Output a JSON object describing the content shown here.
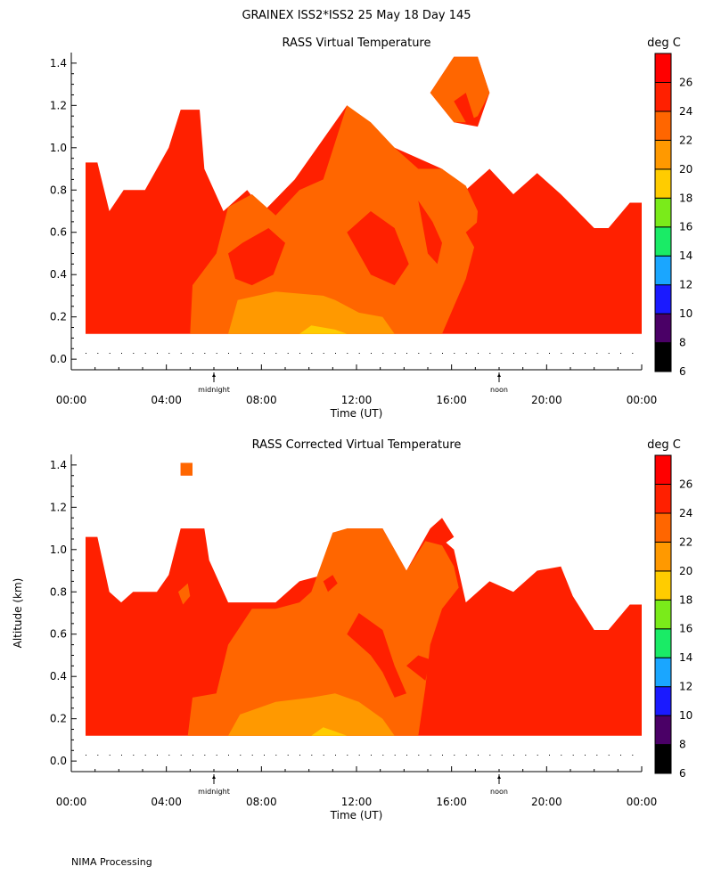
{
  "figure_title": "GRAINEX ISS2*ISS2  25 May 18 Day 145",
  "footer": "NIMA Processing",
  "colors": {
    "bands": [
      "#000000",
      "#4a0066",
      "#1a1aff",
      "#1aa6ff",
      "#1aeb66",
      "#7aeb1a",
      "#ffcc00",
      "#ff9900",
      "#ff6600",
      "#ff2000",
      "#ff0000"
    ],
    "band_borders": "#000000"
  },
  "chart_data": [
    {
      "type": "heatmap",
      "title": "RASS Virtual Temperature",
      "xlabel": "Time (UT)",
      "ylabel": "",
      "x_ticks": [
        "00:00",
        "04:00",
        "08:00",
        "12:00",
        "16:00",
        "20:00",
        "00:00"
      ],
      "x_range_hours": [
        0,
        24
      ],
      "y_ticks": [
        "0.0",
        "0.2",
        "0.4",
        "0.6",
        "0.8",
        "1.0",
        "1.2",
        "1.4"
      ],
      "y_range_km": [
        -0.05,
        1.45
      ],
      "markers": [
        {
          "label": "midnight",
          "hour": 6
        },
        {
          "label": "noon",
          "hour": 18
        }
      ],
      "colorbar": {
        "unit": "deg C",
        "levels": [
          6,
          8,
          10,
          12,
          14,
          16,
          18,
          20,
          22,
          24,
          26,
          28
        ],
        "labels": [
          "6",
          "8",
          "10",
          "12",
          "14",
          "16",
          "18",
          "20",
          "22",
          "24",
          "26"
        ]
      },
      "layers": [
        {
          "value": 25,
          "polygons": [
            [
              [
                0.6,
                0.12
              ],
              [
                0.6,
                0.93
              ],
              [
                1.1,
                0.93
              ],
              [
                1.6,
                0.7
              ],
              [
                2.2,
                0.8
              ],
              [
                3.1,
                0.8
              ],
              [
                4.1,
                1.0
              ],
              [
                4.6,
                1.18
              ],
              [
                5.4,
                1.18
              ],
              [
                5.6,
                0.9
              ],
              [
                6.4,
                0.7
              ],
              [
                7.4,
                0.8
              ],
              [
                8.1,
                0.7
              ],
              [
                9.4,
                0.85
              ],
              [
                11.6,
                1.2
              ],
              [
                13.6,
                1.0
              ],
              [
                15.6,
                0.9
              ],
              [
                16.6,
                0.8
              ],
              [
                17.6,
                0.9
              ],
              [
                18.6,
                0.78
              ],
              [
                19.6,
                0.88
              ],
              [
                20.6,
                0.78
              ],
              [
                22.0,
                0.62
              ],
              [
                22.6,
                0.62
              ],
              [
                23.5,
                0.74
              ],
              [
                24.0,
                0.74
              ],
              [
                24.0,
                0.12
              ]
            ],
            [
              [
                15.1,
                1.26
              ],
              [
                16.1,
                1.43
              ],
              [
                17.1,
                1.43
              ],
              [
                17.6,
                1.26
              ],
              [
                17.1,
                1.1
              ],
              [
                16.1,
                1.12
              ]
            ]
          ]
        },
        {
          "value": 23,
          "polygons": [
            [
              [
                5.0,
                0.12
              ],
              [
                5.1,
                0.35
              ],
              [
                6.1,
                0.5
              ],
              [
                6.6,
                0.72
              ],
              [
                7.6,
                0.78
              ],
              [
                8.6,
                0.68
              ],
              [
                9.6,
                0.8
              ],
              [
                10.6,
                0.85
              ],
              [
                11.6,
                1.2
              ],
              [
                12.6,
                1.12
              ],
              [
                13.6,
                1.0
              ],
              [
                14.6,
                0.9
              ],
              [
                15.6,
                0.9
              ],
              [
                16.6,
                0.82
              ],
              [
                17.1,
                0.7
              ],
              [
                17.0,
                0.55
              ],
              [
                16.6,
                0.38
              ],
              [
                16.1,
                0.25
              ],
              [
                15.6,
                0.12
              ]
            ],
            [
              [
                15.1,
                1.26
              ],
              [
                16.1,
                1.43
              ],
              [
                17.1,
                1.43
              ],
              [
                17.6,
                1.26
              ],
              [
                17.1,
                1.15
              ],
              [
                16.6,
                1.12
              ],
              [
                16.1,
                1.12
              ]
            ]
          ]
        },
        {
          "value": 21,
          "polygons": [
            [
              [
                6.6,
                0.12
              ],
              [
                7.0,
                0.28
              ],
              [
                8.6,
                0.32
              ],
              [
                10.6,
                0.3
              ],
              [
                11.1,
                0.28
              ],
              [
                12.1,
                0.22
              ],
              [
                13.1,
                0.2
              ],
              [
                13.6,
                0.12
              ]
            ]
          ]
        },
        {
          "value": 19,
          "polygons": [
            [
              [
                9.6,
                0.12
              ],
              [
                10.1,
                0.16
              ],
              [
                11.1,
                0.14
              ],
              [
                11.6,
                0.12
              ]
            ]
          ]
        },
        {
          "value": 25,
          "polygons": [
            [
              [
                6.6,
                0.5
              ],
              [
                7.2,
                0.55
              ],
              [
                8.3,
                0.62
              ],
              [
                9.0,
                0.55
              ],
              [
                8.5,
                0.4
              ],
              [
                7.6,
                0.35
              ],
              [
                6.9,
                0.38
              ]
            ],
            [
              [
                11.6,
                0.6
              ],
              [
                12.6,
                0.7
              ],
              [
                13.6,
                0.62
              ],
              [
                14.2,
                0.45
              ],
              [
                13.6,
                0.35
              ],
              [
                12.6,
                0.4
              ]
            ],
            [
              [
                16.1,
                1.22
              ],
              [
                16.6,
                1.26
              ],
              [
                17.0,
                1.12
              ],
              [
                16.6,
                1.12
              ]
            ],
            [
              [
                14.6,
                0.75
              ],
              [
                15.2,
                0.65
              ],
              [
                15.6,
                0.55
              ],
              [
                15.4,
                0.45
              ],
              [
                15.0,
                0.5
              ]
            ],
            [
              [
                16.6,
                0.6
              ],
              [
                17.1,
                0.65
              ],
              [
                17.6,
                0.55
              ],
              [
                17.1,
                0.5
              ]
            ]
          ]
        }
      ]
    },
    {
      "type": "heatmap",
      "title": "RASS Corrected Virtual Temperature",
      "xlabel": "Time (UT)",
      "ylabel": "Altitude (km)",
      "x_ticks": [
        "00:00",
        "04:00",
        "08:00",
        "12:00",
        "16:00",
        "20:00",
        "00:00"
      ],
      "x_range_hours": [
        0,
        24
      ],
      "y_ticks": [
        "0.0",
        "0.2",
        "0.4",
        "0.6",
        "0.8",
        "1.0",
        "1.2",
        "1.4"
      ],
      "y_range_km": [
        -0.05,
        1.45
      ],
      "markers": [
        {
          "label": "midnight",
          "hour": 6
        },
        {
          "label": "noon",
          "hour": 18
        }
      ],
      "colorbar": {
        "unit": "deg C",
        "levels": [
          6,
          8,
          10,
          12,
          14,
          16,
          18,
          20,
          22,
          24,
          26,
          28
        ],
        "labels": [
          "6",
          "8",
          "10",
          "12",
          "14",
          "16",
          "18",
          "20",
          "22",
          "24",
          "26"
        ]
      },
      "layers": [
        {
          "value": 25,
          "polygons": [
            [
              [
                0.6,
                0.12
              ],
              [
                0.6,
                1.06
              ],
              [
                1.1,
                1.06
              ],
              [
                1.6,
                0.8
              ],
              [
                2.1,
                0.75
              ],
              [
                2.6,
                0.8
              ],
              [
                3.6,
                0.8
              ],
              [
                4.1,
                0.88
              ],
              [
                4.6,
                1.1
              ],
              [
                5.6,
                1.1
              ],
              [
                5.8,
                0.95
              ],
              [
                6.6,
                0.75
              ],
              [
                7.6,
                0.75
              ],
              [
                8.6,
                0.75
              ],
              [
                9.6,
                0.85
              ],
              [
                10.6,
                0.88
              ],
              [
                11.6,
                1.1
              ],
              [
                13.1,
                1.1
              ],
              [
                14.1,
                0.9
              ],
              [
                15.1,
                1.1
              ],
              [
                16.1,
                1.0
              ],
              [
                16.6,
                0.75
              ],
              [
                17.6,
                0.85
              ],
              [
                18.6,
                0.8
              ],
              [
                19.6,
                0.9
              ],
              [
                20.6,
                0.92
              ],
              [
                21.1,
                0.78
              ],
              [
                22.0,
                0.62
              ],
              [
                22.6,
                0.62
              ],
              [
                23.5,
                0.74
              ],
              [
                24.0,
                0.74
              ],
              [
                24.0,
                0.12
              ]
            ],
            [
              [
                4.6,
                1.35
              ],
              [
                4.6,
                1.41
              ],
              [
                5.1,
                1.41
              ],
              [
                5.1,
                1.35
              ]
            ]
          ]
        },
        {
          "value": 23,
          "polygons": [
            [
              [
                4.9,
                0.12
              ],
              [
                5.1,
                0.3
              ],
              [
                6.1,
                0.32
              ],
              [
                6.6,
                0.55
              ],
              [
                7.6,
                0.72
              ],
              [
                8.6,
                0.72
              ],
              [
                9.6,
                0.75
              ],
              [
                10.1,
                0.8
              ],
              [
                11.0,
                1.08
              ],
              [
                11.6,
                1.1
              ],
              [
                13.1,
                1.1
              ],
              [
                14.1,
                0.9
              ],
              [
                14.9,
                1.04
              ],
              [
                15.6,
                1.02
              ],
              [
                16.1,
                0.92
              ],
              [
                16.3,
                0.82
              ],
              [
                15.6,
                0.72
              ],
              [
                15.1,
                0.55
              ],
              [
                14.9,
                0.35
              ],
              [
                14.6,
                0.12
              ]
            ],
            [
              [
                4.6,
                1.35
              ],
              [
                4.6,
                1.41
              ],
              [
                5.1,
                1.41
              ],
              [
                5.1,
                1.35
              ]
            ],
            [
              [
                4.5,
                0.8
              ],
              [
                4.9,
                0.84
              ],
              [
                5.0,
                0.78
              ],
              [
                4.7,
                0.74
              ]
            ]
          ]
        },
        {
          "value": 21,
          "polygons": [
            [
              [
                6.6,
                0.12
              ],
              [
                7.1,
                0.22
              ],
              [
                8.6,
                0.28
              ],
              [
                10.1,
                0.3
              ],
              [
                11.1,
                0.32
              ],
              [
                12.1,
                0.28
              ],
              [
                13.1,
                0.2
              ],
              [
                13.6,
                0.12
              ]
            ]
          ]
        },
        {
          "value": 19,
          "polygons": [
            [
              [
                10.1,
                0.12
              ],
              [
                10.6,
                0.16
              ],
              [
                11.1,
                0.14
              ],
              [
                11.6,
                0.12
              ]
            ]
          ]
        },
        {
          "value": 25,
          "polygons": [
            [
              [
                11.6,
                0.6
              ],
              [
                12.1,
                0.7
              ],
              [
                13.1,
                0.62
              ],
              [
                13.6,
                0.45
              ],
              [
                14.1,
                0.32
              ],
              [
                13.6,
                0.3
              ],
              [
                13.1,
                0.42
              ],
              [
                12.6,
                0.5
              ]
            ],
            [
              [
                14.1,
                0.45
              ],
              [
                14.6,
                0.5
              ],
              [
                15.1,
                0.48
              ],
              [
                14.9,
                0.38
              ]
            ],
            [
              [
                15.1,
                1.1
              ],
              [
                15.6,
                1.15
              ],
              [
                16.1,
                1.06
              ],
              [
                15.6,
                1.02
              ]
            ],
            [
              [
                10.6,
                0.85
              ],
              [
                11.0,
                0.88
              ],
              [
                11.2,
                0.84
              ],
              [
                10.8,
                0.8
              ]
            ]
          ]
        }
      ]
    }
  ]
}
